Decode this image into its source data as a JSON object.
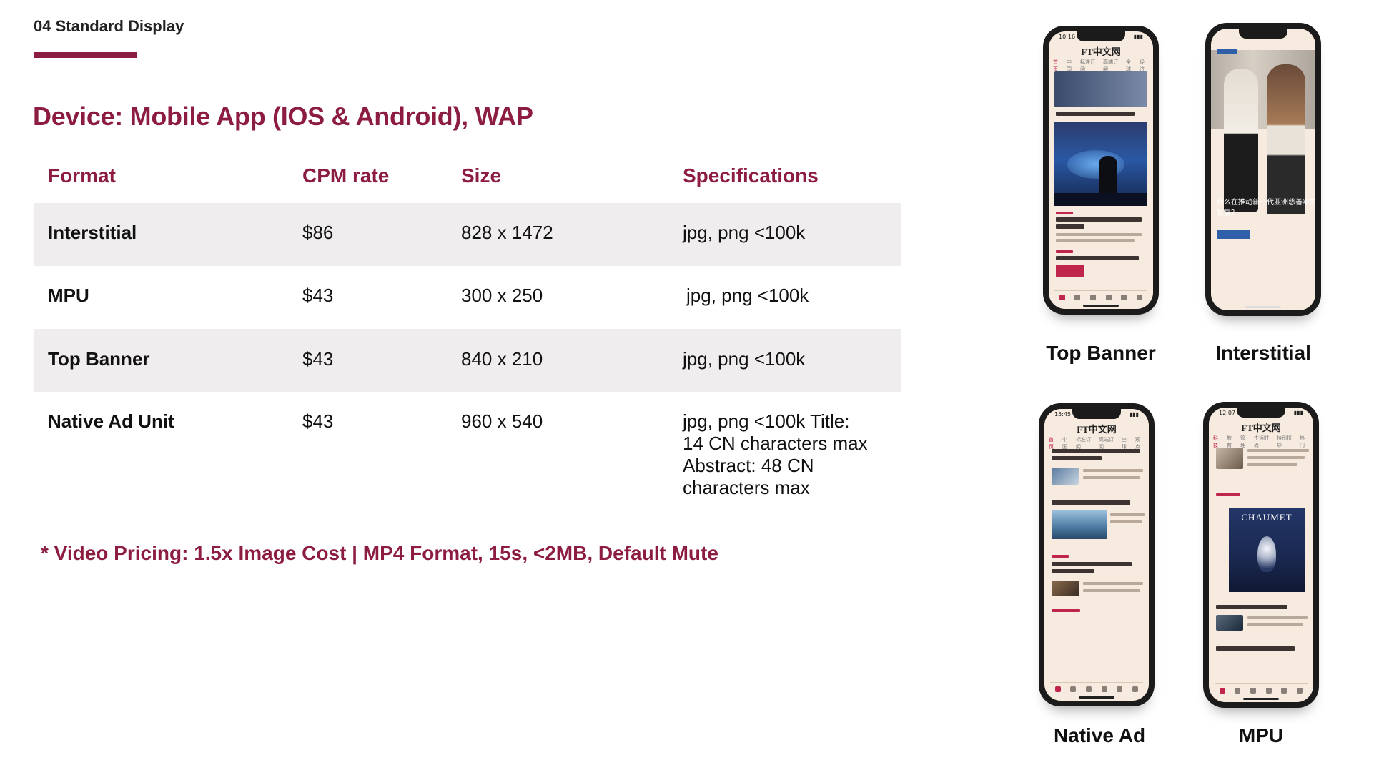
{
  "section": {
    "label": "04 Standard Display"
  },
  "device_title": "Device: Mobile App (IOS & Android), WAP",
  "table": {
    "headers": {
      "format": "Format",
      "cpm": "CPM rate",
      "size": "Size",
      "specs": "Specifications"
    },
    "rows": [
      {
        "format": "Interstitial",
        "cpm": "$86",
        "size": "828 x 1472",
        "specs": [
          "jpg, png <100k"
        ]
      },
      {
        "format": "MPU",
        "cpm": "$43",
        "size": "300 x 250",
        "specs": [
          "jpg, png <100k"
        ]
      },
      {
        "format": "Top Banner",
        "cpm": "$43",
        "size": "840 x 210",
        "specs": [
          "jpg, png <100k"
        ]
      },
      {
        "format": "Native Ad Unit",
        "cpm": "$43",
        "size": "960 x 540",
        "specs": [
          "jpg, png <100k Title:",
          "14 CN characters max",
          "Abstract: 48 CN",
          "characters max"
        ]
      }
    ]
  },
  "video_note": "* Video Pricing: 1.5x Image Cost | MP4 Format, 15s, <2MB, Default Mute",
  "phones": {
    "top_banner": {
      "label": "Top Banner",
      "time": "10:16",
      "app_header": "FT中文网",
      "nav": [
        "首页",
        "中国",
        "标准订阅",
        "高端订阅",
        "全球",
        "经济"
      ]
    },
    "interstitial": {
      "label": "Interstitial",
      "caption": "什么在推动新一代亚洲慈善家的发展？"
    },
    "native_ad": {
      "label": "Native Ad",
      "time": "15:45",
      "app_header": "FT中文网",
      "nav": [
        "首页",
        "中国",
        "标准订阅",
        "高端订阅",
        "全球",
        "观点"
      ]
    },
    "mpu": {
      "label": "MPU",
      "time": "12:07",
      "app_header": "FT中文网",
      "nav": [
        "科技",
        "教育",
        "管理",
        "生活时尚",
        "特别报导",
        "热门"
      ],
      "ad_brand": "CHAUMET"
    }
  },
  "colors": {
    "accent": "#8c1d40",
    "row_shade": "#efeded"
  }
}
